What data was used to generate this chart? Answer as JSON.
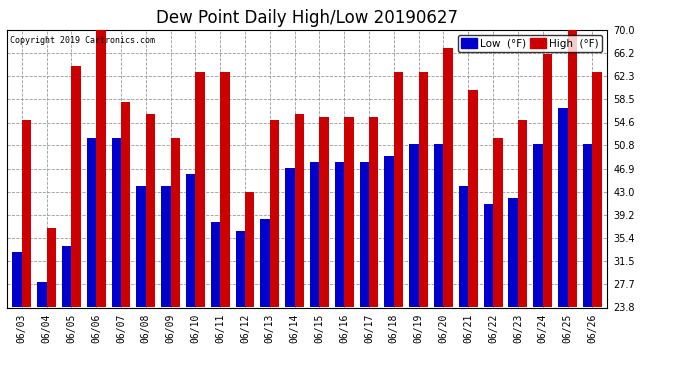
{
  "title": "Dew Point Daily High/Low 20190627",
  "copyright": "Copyright 2019 Cartronics.com",
  "dates": [
    "06/03",
    "06/04",
    "06/05",
    "06/06",
    "06/07",
    "06/08",
    "06/09",
    "06/10",
    "06/11",
    "06/12",
    "06/13",
    "06/14",
    "06/15",
    "06/16",
    "06/17",
    "06/18",
    "06/19",
    "06/20",
    "06/21",
    "06/22",
    "06/23",
    "06/24",
    "06/25",
    "06/26"
  ],
  "low": [
    33.0,
    28.0,
    34.0,
    52.0,
    52.0,
    44.0,
    44.0,
    46.0,
    38.0,
    36.5,
    38.5,
    47.0,
    48.0,
    48.0,
    48.0,
    49.0,
    51.0,
    51.0,
    44.0,
    41.0,
    42.0,
    51.0,
    57.0,
    51.0
  ],
  "high": [
    55.0,
    37.0,
    64.0,
    70.0,
    58.0,
    56.0,
    52.0,
    63.0,
    63.0,
    43.0,
    55.0,
    56.0,
    55.5,
    55.5,
    55.5,
    63.0,
    63.0,
    67.0,
    60.0,
    52.0,
    55.0,
    66.0,
    70.0,
    63.0
  ],
  "low_color": "#0000cc",
  "high_color": "#cc0000",
  "bg_color": "#ffffff",
  "grid_color": "#999999",
  "yticks": [
    23.8,
    27.7,
    31.5,
    35.4,
    39.2,
    43.0,
    46.9,
    50.8,
    54.6,
    58.5,
    62.3,
    66.2,
    70.0
  ],
  "ymin": 23.8,
  "ymax": 70.0,
  "bar_width": 0.38,
  "title_fontsize": 12,
  "tick_fontsize": 7,
  "legend_fontsize": 7.5
}
